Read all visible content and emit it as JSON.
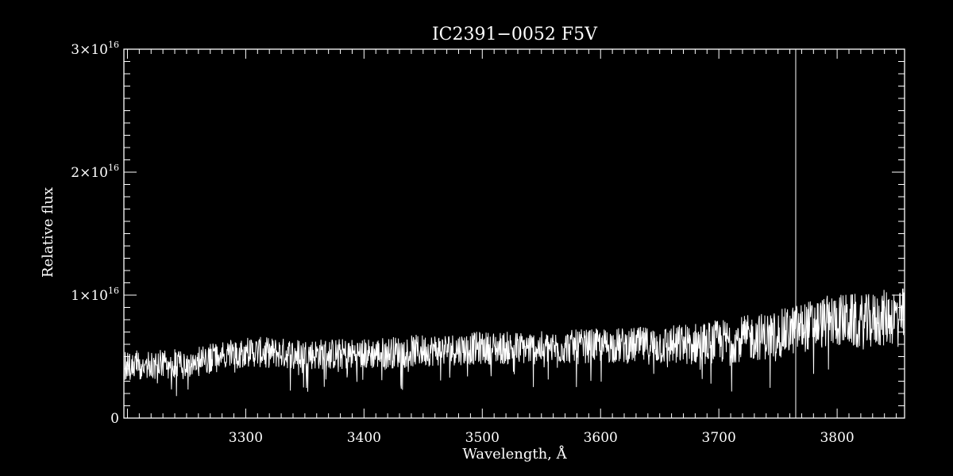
{
  "chart_data": {
    "type": "line",
    "title": "IC2391−0052  F5V",
    "xlabel": "Wavelength, Å",
    "ylabel": "Relative flux",
    "xlim": [
      3197,
      3857
    ],
    "ylim": [
      0,
      3e+16
    ],
    "x_ticks": [
      3300,
      3400,
      3500,
      3600,
      3700,
      3800
    ],
    "x_tick_labels": [
      "3300",
      "3400",
      "3500",
      "3600",
      "3700",
      "3800"
    ],
    "y_ticks": [
      0,
      1e+16,
      2e+16,
      3e+16
    ],
    "y_tick_labels": [
      {
        "base": "0",
        "exp": ""
      },
      {
        "base": "1×10",
        "exp": "16"
      },
      {
        "base": "2×10",
        "exp": "16"
      },
      {
        "base": "3×10",
        "exp": "16"
      }
    ],
    "grid": false,
    "series_color": "#ffffff",
    "reference_line_x": 3765,
    "continuum": [
      [
        3200,
        4300000000000000.0
      ],
      [
        3250,
        4400000000000000.0
      ],
      [
        3300,
        5400000000000000.0
      ],
      [
        3350,
        5200000000000000.0
      ],
      [
        3400,
        5200000000000000.0
      ],
      [
        3450,
        5500000000000000.0
      ],
      [
        3500,
        5700000000000000.0
      ],
      [
        3550,
        5700000000000000.0
      ],
      [
        3600,
        5900000000000000.0
      ],
      [
        3650,
        5900000000000000.0
      ],
      [
        3700,
        6200000000000000.0
      ],
      [
        3725,
        6500000000000000.0
      ],
      [
        3750,
        6800000000000000.0
      ],
      [
        3775,
        7500000000000000.0
      ],
      [
        3800,
        8000000000000000.0
      ],
      [
        3825,
        7800000000000000.0
      ],
      [
        3857,
        8500000000000000.0
      ]
    ],
    "noise_amplitude": [
      [
        3200,
        1200000000000000.0
      ],
      [
        3600,
        1400000000000000.0
      ],
      [
        3700,
        1800000000000000.0
      ],
      [
        3857,
        2400000000000000.0
      ]
    ]
  }
}
